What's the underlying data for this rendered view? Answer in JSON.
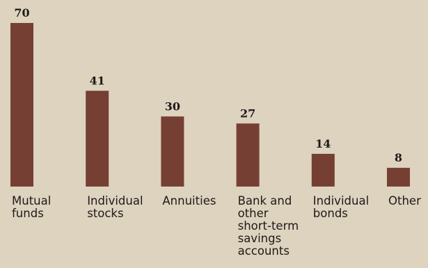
{
  "chart_data": {
    "type": "bar",
    "title": "",
    "xlabel": "",
    "ylabel": "",
    "categories": [
      [
        "Mutual",
        "funds"
      ],
      [
        "Individual",
        "stocks"
      ],
      [
        "Annuities"
      ],
      [
        "Bank and",
        "other",
        "short-term",
        "savings",
        "accounts"
      ],
      [
        "Individual",
        "bonds"
      ],
      [
        "Other"
      ]
    ],
    "values": [
      70,
      41,
      30,
      27,
      14,
      8
    ],
    "value_labels": [
      "70",
      "41",
      "30",
      "27",
      "14",
      "8"
    ],
    "ylim": [
      0,
      70
    ],
    "grid": false,
    "legend": "none",
    "colors": {
      "background": "#ddd3bf",
      "bar": "#763f33",
      "text": "#1f1a17"
    }
  }
}
